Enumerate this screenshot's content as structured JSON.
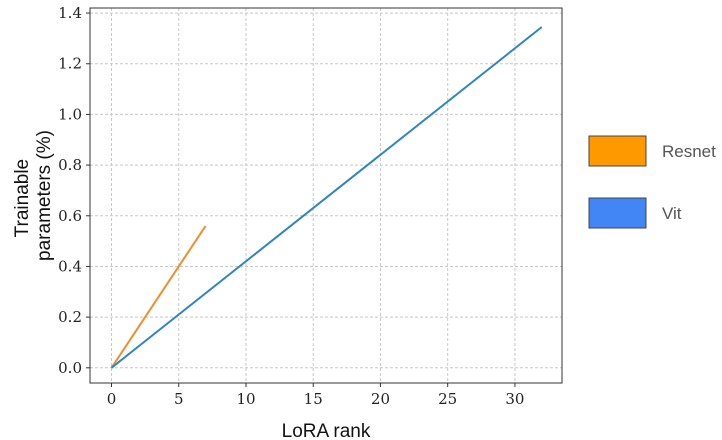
{
  "chart_data": {
    "type": "line",
    "title": "",
    "xlabel": "LoRA rank",
    "ylabel_lines": [
      "Trainable",
      "parameters (%)"
    ],
    "xlim": [
      -1.6,
      33.5
    ],
    "ylim": [
      -0.06,
      1.42
    ],
    "xticks": [
      0,
      5,
      10,
      15,
      20,
      25,
      30
    ],
    "yticks": [
      0.0,
      0.2,
      0.4,
      0.6,
      0.8,
      1.0,
      1.2,
      1.4
    ],
    "ytick_labels": [
      "0.0",
      "0.2",
      "0.4",
      "0.6",
      "0.8",
      "1.0",
      "1.2",
      "1.4"
    ],
    "grid": true,
    "legend_position": "right",
    "series": [
      {
        "name": "Resnet",
        "line_color": "#f28e2b",
        "legend_color": "#ff9900",
        "x": [
          0,
          7
        ],
        "y": [
          0.0,
          0.56
        ]
      },
      {
        "name": "Vit",
        "line_color": "#2e86c1",
        "legend_color": "#4285f4",
        "x": [
          0,
          32
        ],
        "y": [
          0.0,
          1.345
        ]
      }
    ]
  }
}
